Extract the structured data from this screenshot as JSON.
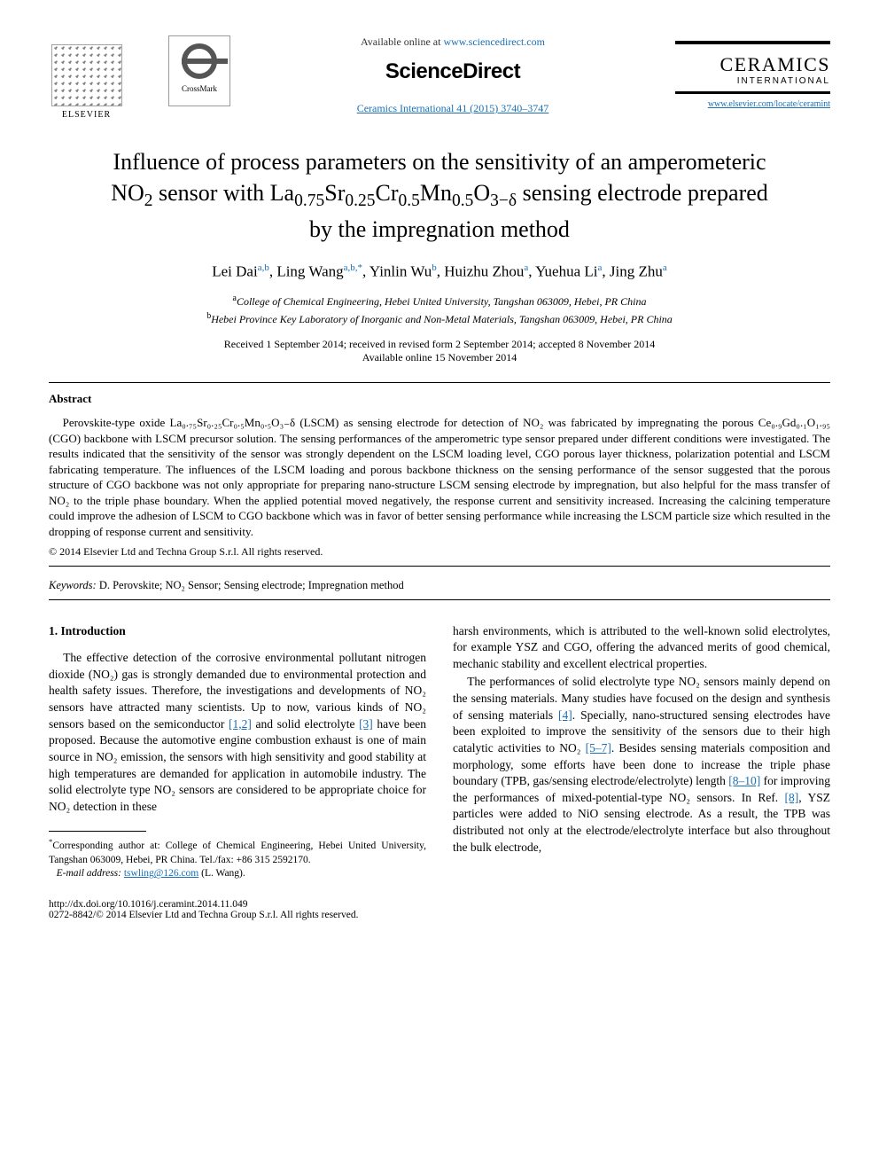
{
  "header": {
    "elsevier_label": "ELSEVIER",
    "crossmark_label": "CrossMark",
    "available_prefix": "Available online at ",
    "available_url": "www.sciencedirect.com",
    "sciencedirect": "ScienceDirect",
    "journal_ref": "Ceramics International 41 (2015) 3740–3747",
    "ceramics_title": "CERAMICS",
    "ceramics_sub": "INTERNATIONAL",
    "journal_url": "www.elsevier.com/locate/ceramint"
  },
  "article": {
    "title_line1": "Influence of process parameters on the sensitivity of an amperometeric",
    "title_line2_pre": "NO",
    "title_line2_sub1": "2",
    "title_line2_mid": " sensor with La",
    "title_line2_sub2": "0.75",
    "title_line2_mid2": "Sr",
    "title_line2_sub3": "0.25",
    "title_line2_mid3": "Cr",
    "title_line2_sub4": "0.5",
    "title_line2_mid4": "Mn",
    "title_line2_sub5": "0.5",
    "title_line2_mid5": "O",
    "title_line2_sub6": "3−δ",
    "title_line2_end": " sensing electrode prepared",
    "title_line3": "by the impregnation method"
  },
  "authors": {
    "a1_name": "Lei Dai",
    "a1_aff": "a,b",
    "a2_name": "Ling Wang",
    "a2_aff": "a,b,",
    "a2_corr": "*",
    "a3_name": "Yinlin Wu",
    "a3_aff": "b",
    "a4_name": "Huizhu Zhou",
    "a4_aff": "a",
    "a5_name": "Yuehua Li",
    "a5_aff": "a",
    "a6_name": "Jing Zhu",
    "a6_aff": "a"
  },
  "affiliations": {
    "a_sup": "a",
    "a_text": "College of Chemical Engineering, Hebei United University, Tangshan 063009, Hebei, PR China",
    "b_sup": "b",
    "b_text": "Hebei Province Key Laboratory of Inorganic and Non-Metal Materials, Tangshan 063009, Hebei, PR China"
  },
  "dates": {
    "line1": "Received 1 September 2014; received in revised form 2 September 2014; accepted 8 November 2014",
    "line2": "Available online 15 November 2014"
  },
  "abstract": {
    "heading": "Abstract",
    "body": "Perovskite-type oxide La₀.₇₅Sr₀.₂₅Cr₀.₅Mn₀.₅O₃₋δ (LSCM) as sensing electrode for detection of NO₂ was fabricated by impregnating the porous Ce₀.₉Gd₀.₁O₁.₉₅ (CGO) backbone with LSCM precursor solution. The sensing performances of the amperometric type sensor prepared under different conditions were investigated. The results indicated that the sensitivity of the sensor was strongly dependent on the LSCM loading level, CGO porous layer thickness, polarization potential and LSCM fabricating temperature. The influences of the LSCM loading and porous backbone thickness on the sensing performance of the sensor suggested that the porous structure of CGO backbone was not only appropriate for preparing nano-structure LSCM sensing electrode by impregnation, but also helpful for the mass transfer of NO₂ to the triple phase boundary. When the applied potential moved negatively, the response current and sensitivity increased. Increasing the calcining temperature could improve the adhesion of LSCM to CGO backbone which was in favor of better sensing performance while increasing the LSCM particle size which resulted in the dropping of response current and sensitivity.",
    "copyright": "© 2014 Elsevier Ltd and Techna Group S.r.l. All rights reserved."
  },
  "keywords": {
    "label": "Keywords:",
    "text": " D. Perovskite; NO₂ Sensor; Sensing electrode; Impregnation method"
  },
  "intro": {
    "heading": "1. Introduction",
    "col1_p1_a": "The effective detection of the corrosive environmental pollutant nitrogen dioxide (NO₂) gas is strongly demanded due to environmental protection and health safety issues. Therefore, the investigations and developments of NO₂ sensors have attracted many scientists. Up to now, various kinds of NO₂ sensors based on the semiconductor ",
    "ref12": "[1,2]",
    "col1_p1_b": " and solid electrolyte ",
    "ref3": "[3]",
    "col1_p1_c": " have been proposed. Because the automotive engine combustion exhaust is one of main source in NO₂ emission, the sensors with high sensitivity and good stability at high temperatures are demanded for application in automobile industry. The solid electrolyte type NO₂ sensors are considered to be appropriate choice for NO₂ detection in these",
    "col2_p1": "harsh environments, which is attributed to the well-known solid electrolytes, for example YSZ and CGO, offering the advanced merits of good chemical, mechanic stability and excellent electrical properties.",
    "col2_p2_a": "The performances of solid electrolyte type NO₂ sensors mainly depend on the sensing materials. Many studies have focused on the design and synthesis of sensing materials ",
    "ref4": "[4]",
    "col2_p2_b": ". Specially, nano-structured sensing electrodes have been exploited to improve the sensitivity of the sensors due to their high catalytic activities to NO₂ ",
    "ref57": "[5–7]",
    "col2_p2_c": ". Besides sensing materials composition and morphology, some efforts have been done to increase the triple phase boundary (TPB, gas/sensing electrode/electrolyte) length ",
    "ref810": "[8–10]",
    "col2_p2_d": " for improving the performances of mixed-potential-type NO₂ sensors. In Ref. ",
    "ref8": "[8]",
    "col2_p2_e": ", YSZ particles were added to NiO sensing electrode. As a result, the TPB was distributed not only at the electrode/electrolyte interface but also throughout the bulk electrode,"
  },
  "footnote": {
    "corr_marker": "*",
    "corr_text": "Corresponding author at: College of Chemical Engineering, Hebei United University, Tangshan 063009, Hebei, PR China. Tel./fax: +86 315 2592170.",
    "email_label": "E-mail address: ",
    "email": "tswling@126.com",
    "email_suffix": " (L. Wang)."
  },
  "bottom": {
    "doi": "http://dx.doi.org/10.1016/j.ceramint.2014.11.049",
    "issn": "0272-8842/© 2014 Elsevier Ltd and Techna Group S.r.l. All rights reserved."
  },
  "colors": {
    "link": "#1a6fb5",
    "text": "#000000",
    "bg": "#ffffff"
  }
}
